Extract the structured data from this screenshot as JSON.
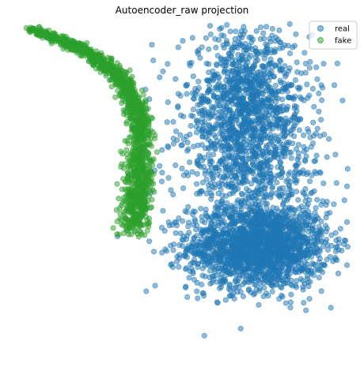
{
  "chart_data": {
    "type": "scatter",
    "title": "Autoencoder_raw projection",
    "xlabel": "",
    "ylabel": "",
    "axes_visible": false,
    "legend_placement": "top-right",
    "xlim": [
      -10,
      10
    ],
    "ylim": [
      -10,
      10
    ],
    "series": [
      {
        "name": "real",
        "color": "#1f77b4",
        "alpha": 0.5,
        "marker": "circle",
        "approx_count": 3500,
        "clusters": [
          {
            "shape": "blob",
            "center": [
              4.6,
              -3.6
            ],
            "spread": [
              2.1,
              1.3
            ],
            "weight": 0.55
          },
          {
            "shape": "blob",
            "center": [
              3.9,
              4.9
            ],
            "spread": [
              1.9,
              2.3
            ],
            "weight": 0.35
          },
          {
            "shape": "blob",
            "center": [
              4.2,
              0.8
            ],
            "spread": [
              2.2,
              1.4
            ],
            "weight": 0.1
          }
        ]
      },
      {
        "name": "fake",
        "color": "#2ca02c",
        "alpha": 0.5,
        "marker": "circle",
        "approx_count": 1400,
        "clusters": [
          {
            "shape": "arc",
            "path": [
              [
                -9.2,
                9.7
              ],
              [
                -6.0,
                8.5
              ],
              [
                -3.6,
                6.7
              ],
              [
                -2.5,
                4.2
              ],
              [
                -2.6,
                0.5
              ],
              [
                -2.9,
                -2.6
              ]
            ],
            "spread": 0.55
          }
        ]
      }
    ]
  }
}
